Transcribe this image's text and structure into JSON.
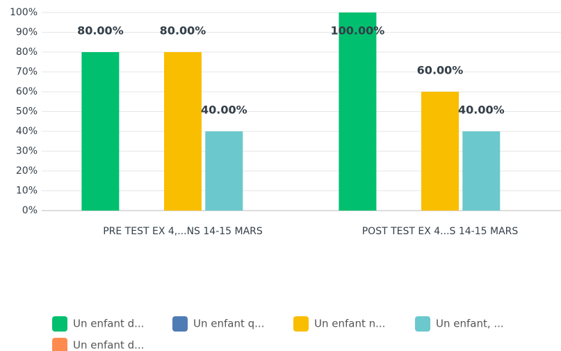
{
  "chart_data": {
    "type": "bar",
    "categories": [
      "PRE TEST EX 4,...NS 14-15 MARS",
      "POST TEST EX 4...S 14-15 MARS"
    ],
    "series": [
      {
        "name": "Un enfant d...",
        "color": "#00bf6f",
        "values": [
          80,
          100
        ],
        "value_labels": [
          "80.00%",
          "100.00%"
        ]
      },
      {
        "name": "Un enfant q...",
        "color": "#507cb6",
        "values": [
          null,
          null
        ],
        "value_labels": [
          null,
          null
        ]
      },
      {
        "name": "Un enfant n...",
        "color": "#f9be00",
        "values": [
          80,
          60
        ],
        "value_labels": [
          "80.00%",
          "60.00%"
        ]
      },
      {
        "name": "Un enfant, ...",
        "color": "#6bc8cd",
        "values": [
          40,
          40
        ],
        "value_labels": [
          "40.00%",
          "40.00%"
        ]
      },
      {
        "name": "Un enfant d...",
        "color": "#ff8b4f",
        "values": [
          null,
          null
        ],
        "value_labels": [
          null,
          null
        ]
      }
    ],
    "ylim": [
      0,
      100
    ],
    "yticks": [
      {
        "value": 0,
        "label": "0%"
      },
      {
        "value": 10,
        "label": "10%"
      },
      {
        "value": 20,
        "label": "20%"
      },
      {
        "value": 30,
        "label": "30%"
      },
      {
        "value": 40,
        "label": "40%"
      },
      {
        "value": 50,
        "label": "50%"
      },
      {
        "value": 60,
        "label": "60%"
      },
      {
        "value": 70,
        "label": "70%"
      },
      {
        "value": 80,
        "label": "80%"
      },
      {
        "value": 90,
        "label": "90%"
      },
      {
        "value": 100,
        "label": "100%"
      }
    ],
    "grid": true,
    "legend": "bottom"
  }
}
